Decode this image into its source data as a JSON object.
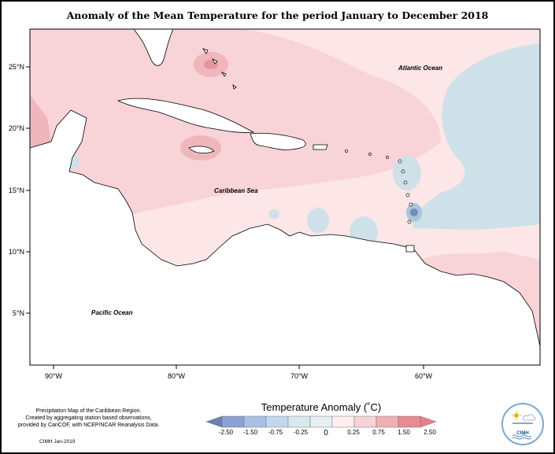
{
  "title": "Anomaly of the Mean Temperature for the period January to December 2018",
  "map": {
    "lat_ticks": [
      "25°N",
      "20°N",
      "15°N",
      "10°N",
      "5°N"
    ],
    "lon_ticks": [
      "90°W",
      "80°W",
      "70°W",
      "60°W"
    ],
    "labels": {
      "atlantic": "Atlantic Ocean",
      "caribbean": "Caribbean Sea",
      "pacific": "Pacific Ocean"
    },
    "colors": {
      "land": "#ffffff",
      "pink_light": "#fde6e7",
      "pink": "#f8d3d7",
      "pink_mid": "#efb6bc",
      "red_dark": "#e4959c",
      "blue_light": "#cfe1e8",
      "blue_mid": "#a9c6da",
      "blue_dark": "#6f8fb8",
      "coast": "#000000"
    }
  },
  "legend": {
    "title": "Temperature Anomaly (˚C)",
    "ticks": [
      "-2.50",
      "-1.50",
      "-0.75",
      "-0.25",
      "0",
      "0.25",
      "0.75",
      "1.50",
      "2.50"
    ],
    "colors": [
      "#6b7fb5",
      "#8aa1d4",
      "#a9bfe6",
      "#c3d7ec",
      "#d8e8ee",
      "#fdeef0",
      "#f7d2d7",
      "#f0aeb5",
      "#e88a92",
      "#f07c84"
    ]
  },
  "footer": {
    "note_line1": "Precipitation Map of the Caribbean Region.",
    "note_line2": "Created by aggregating station based observations,",
    "note_line3": "provided by CariCOF, with NCEP/NCAR Reanalysis Data.",
    "credit": "CIMH Jan-2019",
    "logo_text": "CIMH"
  }
}
